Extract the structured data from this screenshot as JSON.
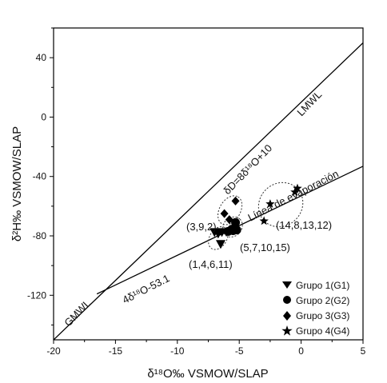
{
  "chart_data": {
    "type": "scatter",
    "xlabel": "δ¹⁸O‰ VSMOW/SLAP",
    "ylabel": "δ²H‰ VSMOW/SLAP",
    "xlim": [
      -20,
      5
    ],
    "ylim": [
      -150,
      60
    ],
    "x_ticks": [
      -20,
      -15,
      -10,
      -5,
      0,
      5
    ],
    "y_ticks": [
      40,
      0,
      -40,
      -80,
      -120
    ],
    "x_tick_labels": [
      "-20",
      "-15",
      "-10",
      "-5",
      "0",
      "5"
    ],
    "y_tick_labels": [
      "40",
      "0",
      "-40",
      "-80",
      "-120"
    ],
    "grid": false,
    "lines": [
      {
        "name": "GMWL / LMWL",
        "equation": "δD=8δ¹⁸O+10",
        "slope": 8,
        "intercept": 10,
        "x_range": [
          -20,
          5
        ]
      },
      {
        "name": "Línea de evaporación",
        "equation": "4δ¹⁸O-53.1",
        "slope": 4,
        "intercept": -53.1,
        "x_range": [
          -16.5,
          5
        ]
      }
    ],
    "line_labels": {
      "gmwl": "GMWL",
      "lmwl": "LMWL",
      "gmwl_eq": "δD=8δ¹⁸O+10",
      "evap": "Línea de evaporación",
      "evap_eq": "4δ¹⁸O-53.1"
    },
    "series": [
      {
        "name": "Grupo 1(G1)",
        "marker": "triangle-down",
        "points": [
          [
            -7.0,
            -77.5
          ],
          [
            -6.7,
            -78.5
          ],
          [
            -6.4,
            -77.5
          ],
          [
            -6.5,
            -85.5
          ]
        ]
      },
      {
        "name": "Grupo 2(G2)",
        "marker": "circle",
        "points": [
          [
            -5.9,
            -77.0
          ],
          [
            -5.5,
            -76.5
          ],
          [
            -5.3,
            -71.0
          ],
          [
            -5.2,
            -76.0
          ],
          [
            -5.6,
            -75.5
          ]
        ]
      },
      {
        "name": "Grupo 3(G3)",
        "marker": "diamond",
        "points": [
          [
            -6.2,
            -65.0
          ],
          [
            -5.8,
            -69.0
          ],
          [
            -5.3,
            -56.5
          ]
        ]
      },
      {
        "name": "Grupo 4(G4)",
        "marker": "star",
        "points": [
          [
            -2.5,
            -58.5
          ],
          [
            -0.5,
            -50.5
          ],
          [
            -0.3,
            -48.0
          ],
          [
            -3.0,
            -70.0
          ]
        ]
      }
    ],
    "annotations": [
      {
        "text": "(3,9,2)",
        "near": [
          -7.5,
          -64
        ]
      },
      {
        "text": "(1,4,6,11)",
        "near": [
          -8.5,
          -93
        ]
      },
      {
        "text": "(5,7,10,15)",
        "near": [
          -3.5,
          -80
        ]
      },
      {
        "text": "(14,8,13,12)",
        "near": [
          0.0,
          -65
        ]
      }
    ],
    "legend": {
      "placement": "bottom-right",
      "entries": [
        "Grupo 1(G1)",
        "Grupo 2(G2)",
        "Grupo 3(G3)",
        "Grupo 4(G4)"
      ]
    }
  }
}
